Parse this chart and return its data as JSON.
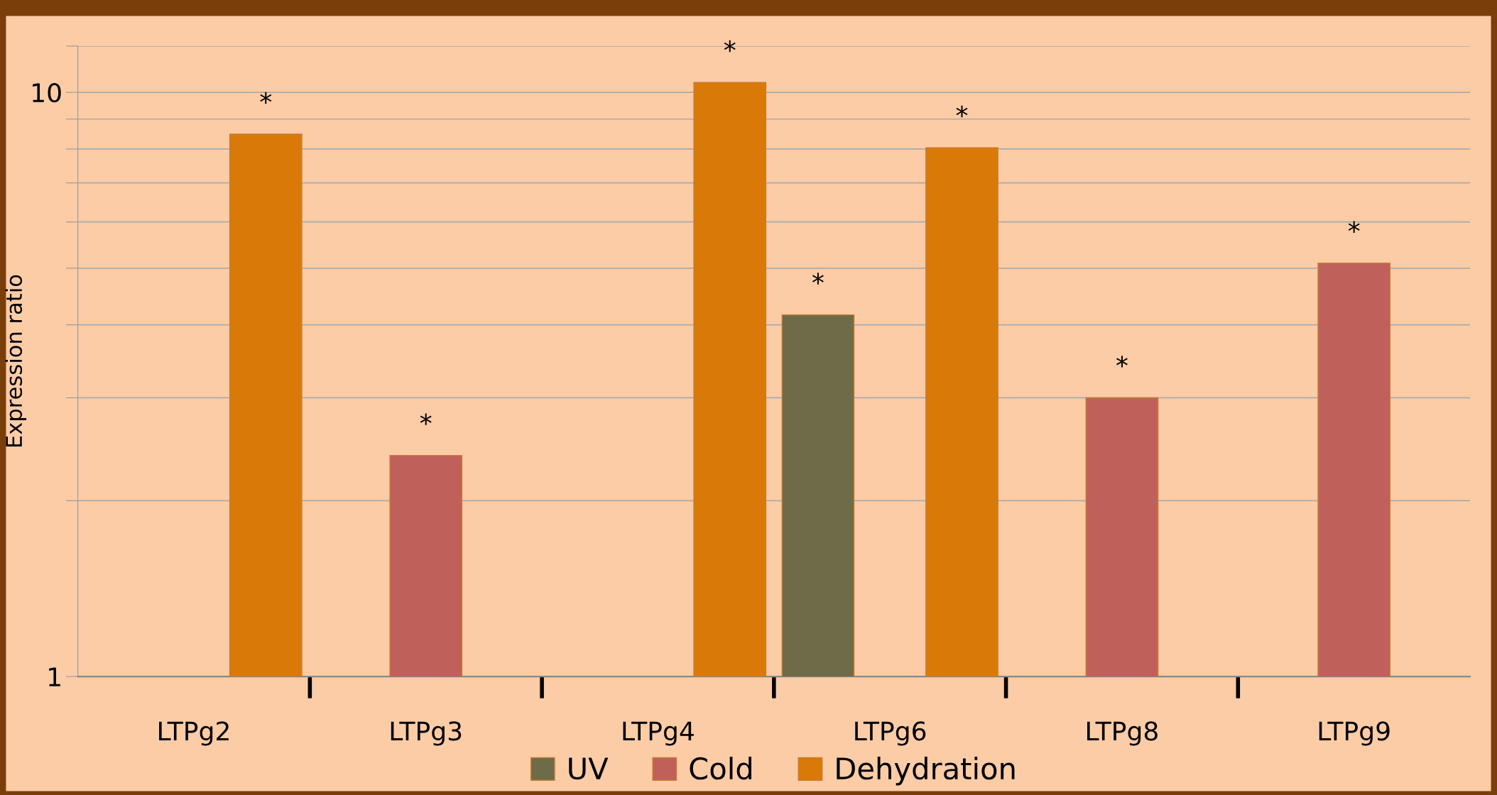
{
  "chart_data": {
    "type": "bar",
    "ylabel": "Expression ratio",
    "categories": [
      "LTPg2",
      "LTPg3",
      "LTPg4",
      "LTPg6",
      "LTPg8",
      "LTPg9"
    ],
    "series": [
      {
        "name": "UV",
        "color": "#6e6c48",
        "values": [
          null,
          null,
          null,
          4.16,
          null,
          null
        ],
        "value_labels": [
          null,
          null,
          null,
          "*",
          null,
          null
        ]
      },
      {
        "name": "Cold",
        "color": "#c0605a",
        "values": [
          null,
          2.39,
          null,
          null,
          3.0,
          5.1
        ],
        "value_labels": [
          null,
          "*",
          null,
          null,
          "*",
          "*"
        ]
      },
      {
        "name": "Dehydration",
        "color": "#d97a08",
        "values": [
          8.48,
          null,
          10.4,
          8.04,
          null,
          null
        ],
        "value_labels": [
          "*",
          null,
          "*",
          "*",
          null,
          null
        ]
      }
    ],
    "log": true,
    "ylim": [
      1,
      12
    ],
    "yticks": [
      1,
      {
        "value": 2,
        "label": null
      },
      {
        "value": 3,
        "label": null
      },
      {
        "value": 4,
        "label": null
      },
      {
        "value": 5,
        "label": null
      },
      {
        "value": 6,
        "label": null
      },
      {
        "value": 7,
        "label": null
      },
      {
        "value": 8,
        "label": null
      },
      {
        "value": 9,
        "label": null
      },
      10,
      {
        "value": 12,
        "label": null
      }
    ],
    "grid": "y",
    "legend": "bottom"
  }
}
